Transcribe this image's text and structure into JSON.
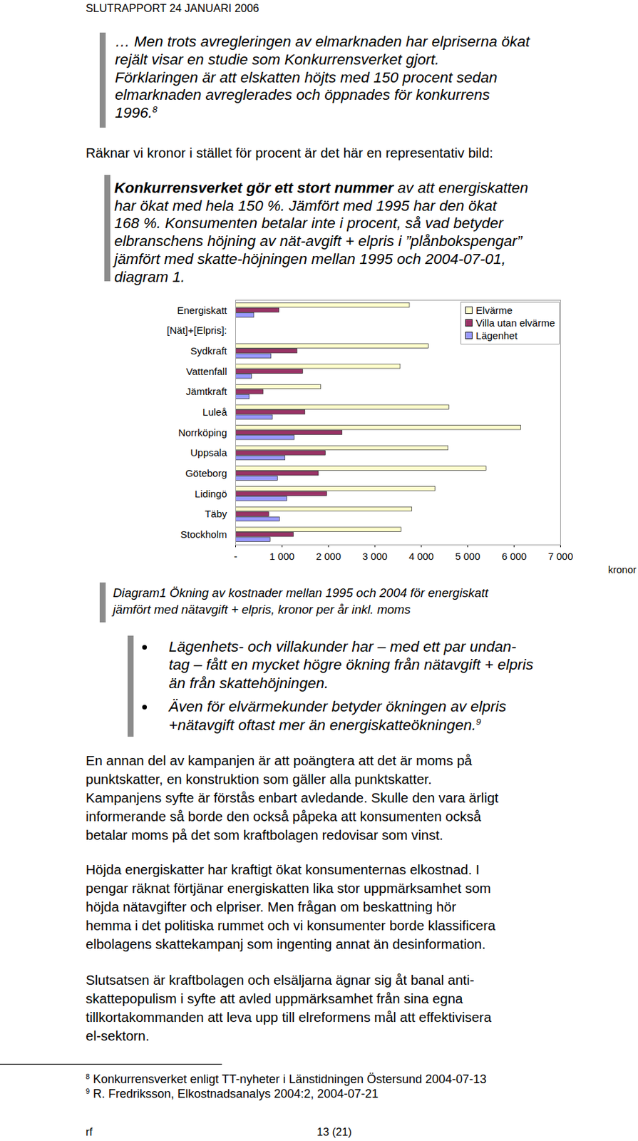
{
  "header": "SLUTRAPPORT 24 JANUARI 2006",
  "quote1": {
    "lines": [
      "… Men trots avregleringen av elmarknaden har elpriserna ökat",
      "rejält visar en studie som Konkurrensverket gjort.",
      "Förklaringen är att elskatten höjts med 150 procent sedan",
      "elmarknaden avreglerades och öppnades för konkurrens",
      "1996."
    ],
    "note": "8"
  },
  "intro": "Räknar vi kronor i stället för procent är det här en representativ bild:",
  "quote2": {
    "lines": [
      [
        {
          "text": "Konkurrensverket gör ett stort nummer",
          "bold": true
        },
        {
          "text": " av att energiskatten"
        }
      ],
      "har ökat med hela 150 %. Jämfört med 1995 har den ökat",
      "168 %. Konsumenten betalar inte i procent, så vad betyder",
      "elbranschens höjning av nät-avgift + elpris  i ”plånbokspengar”",
      "jämfört med skatte-höjningen mellan 1995 och 2004-07-01,",
      "diagram 1."
    ]
  },
  "chart_data": {
    "type": "bar",
    "orientation": "horizontal",
    "categories": [
      "Energiskatt",
      "[Nät]+[Elpris]:",
      "Sydkraft",
      "Vattenfall",
      "Jämtkraft",
      "Luleå",
      "Norrköping",
      "Uppsala",
      "Göteborg",
      "Lidingö",
      "Täby",
      "Stockholm"
    ],
    "series": [
      {
        "name": "Elvärme",
        "color": "#ffffcc",
        "values": [
          3750,
          null,
          4160,
          3550,
          1840,
          4600,
          6150,
          4580,
          5400,
          4300,
          3800,
          3570
        ]
      },
      {
        "name": "Villa utan elvärme",
        "color": "#993366",
        "values": [
          940,
          null,
          1330,
          1450,
          600,
          1500,
          2300,
          1940,
          1790,
          1970,
          720,
          1250
        ]
      },
      {
        "name": "Lägenhet",
        "color": "#9999ff",
        "values": [
          400,
          null,
          770,
          350,
          300,
          800,
          1270,
          1070,
          910,
          1110,
          950,
          750
        ]
      }
    ],
    "xlim": [
      0,
      7000
    ],
    "xticks": [
      {
        "value": 0,
        "label": "-"
      },
      {
        "value": 1000,
        "label": "1 000"
      },
      {
        "value": 2000,
        "label": "2 000"
      },
      {
        "value": 3000,
        "label": "3 000"
      },
      {
        "value": 4000,
        "label": "4 000"
      },
      {
        "value": 5000,
        "label": "5 000"
      },
      {
        "value": 6000,
        "label": "6 000"
      },
      {
        "value": 7000,
        "label": "7 000"
      }
    ],
    "xlabel": "kronor",
    "grid": false,
    "legend": "top-right"
  },
  "caption": [
    "Diagram1 Ökning av kostnader mellan 1995 och 2004 för energiskatt",
    "jämfört med nätavgift + elpris, kronor per år inkl. moms"
  ],
  "bullets": [
    {
      "lines": [
        "Lägenhets- och villakunder har – med ett par undan-",
        "tag – fått en mycket högre ökning från nätavgift + elpris",
        "än från skattehöjningen."
      ]
    },
    {
      "lines": [
        "Även för elvärmekunder betyder ökningen av elpris",
        "+nätavgift  oftast mer än energiskatteökningen."
      ],
      "note": "9"
    }
  ],
  "paragraphs": [
    [
      "En annan del av kampanjen är att poängtera att det är moms på",
      "punktskatter, en konstruktion som gäller alla punktskatter.",
      "Kampanjens syfte är förstås enbart avledande. Skulle den vara ärligt",
      "informerande så borde den också påpeka att konsumenten också",
      "betalar moms på det som kraftbolagen redovisar som vinst."
    ],
    [
      "Höjda energiskatter har kraftigt ökat konsumenternas elkostnad. I",
      "pengar räknat förtjänar energiskatten lika stor uppmärksamhet som",
      "höjda nätavgifter och elpriser. Men frågan om beskattning hör",
      "hemma i det politiska rummet och vi konsumenter borde klassificera",
      "elbolagens skattekampanj som ingenting annat än desinformation."
    ],
    [
      "Slutsatsen är kraftbolagen och elsäljarna ägnar sig åt banal anti-",
      "skattepopulism i syfte att avled uppmärksamhet från sina egna",
      "tillkortakommanden att leva upp till elreformens mål att effektivisera",
      "el-sektorn."
    ]
  ],
  "footnotes": [
    {
      "mark": "8",
      "text": "Konkurrensverket enligt TT-nyheter  i Länstidningen Östersund 2004-07-13"
    },
    {
      "mark": "9",
      "text": "R. Fredriksson, Elkostnadsanalys 2004:2, 2004-07-21"
    }
  ],
  "footer": {
    "left": "rf",
    "page": "13 (21)"
  }
}
